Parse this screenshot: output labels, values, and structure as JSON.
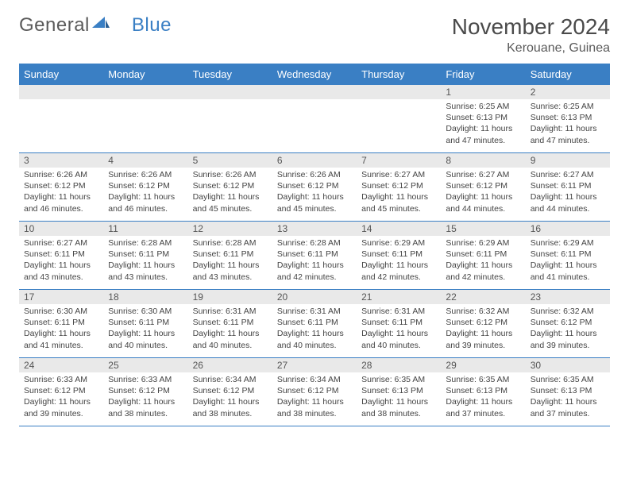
{
  "brand": {
    "part1": "General",
    "part2": "Blue"
  },
  "title": "November 2024",
  "location": "Kerouane, Guinea",
  "colors": {
    "accent": "#3a7fc4",
    "daynum_bg": "#e9e9e9",
    "text": "#444444",
    "header_text": "#4a4a4a",
    "background": "#ffffff"
  },
  "weekdays": [
    "Sunday",
    "Monday",
    "Tuesday",
    "Wednesday",
    "Thursday",
    "Friday",
    "Saturday"
  ],
  "weeks": [
    [
      {
        "empty": true
      },
      {
        "empty": true
      },
      {
        "empty": true
      },
      {
        "empty": true
      },
      {
        "empty": true
      },
      {
        "day": "1",
        "sunrise": "Sunrise: 6:25 AM",
        "sunset": "Sunset: 6:13 PM",
        "daylight": "Daylight: 11 hours and 47 minutes."
      },
      {
        "day": "2",
        "sunrise": "Sunrise: 6:25 AM",
        "sunset": "Sunset: 6:13 PM",
        "daylight": "Daylight: 11 hours and 47 minutes."
      }
    ],
    [
      {
        "day": "3",
        "sunrise": "Sunrise: 6:26 AM",
        "sunset": "Sunset: 6:12 PM",
        "daylight": "Daylight: 11 hours and 46 minutes."
      },
      {
        "day": "4",
        "sunrise": "Sunrise: 6:26 AM",
        "sunset": "Sunset: 6:12 PM",
        "daylight": "Daylight: 11 hours and 46 minutes."
      },
      {
        "day": "5",
        "sunrise": "Sunrise: 6:26 AM",
        "sunset": "Sunset: 6:12 PM",
        "daylight": "Daylight: 11 hours and 45 minutes."
      },
      {
        "day": "6",
        "sunrise": "Sunrise: 6:26 AM",
        "sunset": "Sunset: 6:12 PM",
        "daylight": "Daylight: 11 hours and 45 minutes."
      },
      {
        "day": "7",
        "sunrise": "Sunrise: 6:27 AM",
        "sunset": "Sunset: 6:12 PM",
        "daylight": "Daylight: 11 hours and 45 minutes."
      },
      {
        "day": "8",
        "sunrise": "Sunrise: 6:27 AM",
        "sunset": "Sunset: 6:12 PM",
        "daylight": "Daylight: 11 hours and 44 minutes."
      },
      {
        "day": "9",
        "sunrise": "Sunrise: 6:27 AM",
        "sunset": "Sunset: 6:11 PM",
        "daylight": "Daylight: 11 hours and 44 minutes."
      }
    ],
    [
      {
        "day": "10",
        "sunrise": "Sunrise: 6:27 AM",
        "sunset": "Sunset: 6:11 PM",
        "daylight": "Daylight: 11 hours and 43 minutes."
      },
      {
        "day": "11",
        "sunrise": "Sunrise: 6:28 AM",
        "sunset": "Sunset: 6:11 PM",
        "daylight": "Daylight: 11 hours and 43 minutes."
      },
      {
        "day": "12",
        "sunrise": "Sunrise: 6:28 AM",
        "sunset": "Sunset: 6:11 PM",
        "daylight": "Daylight: 11 hours and 43 minutes."
      },
      {
        "day": "13",
        "sunrise": "Sunrise: 6:28 AM",
        "sunset": "Sunset: 6:11 PM",
        "daylight": "Daylight: 11 hours and 42 minutes."
      },
      {
        "day": "14",
        "sunrise": "Sunrise: 6:29 AM",
        "sunset": "Sunset: 6:11 PM",
        "daylight": "Daylight: 11 hours and 42 minutes."
      },
      {
        "day": "15",
        "sunrise": "Sunrise: 6:29 AM",
        "sunset": "Sunset: 6:11 PM",
        "daylight": "Daylight: 11 hours and 42 minutes."
      },
      {
        "day": "16",
        "sunrise": "Sunrise: 6:29 AM",
        "sunset": "Sunset: 6:11 PM",
        "daylight": "Daylight: 11 hours and 41 minutes."
      }
    ],
    [
      {
        "day": "17",
        "sunrise": "Sunrise: 6:30 AM",
        "sunset": "Sunset: 6:11 PM",
        "daylight": "Daylight: 11 hours and 41 minutes."
      },
      {
        "day": "18",
        "sunrise": "Sunrise: 6:30 AM",
        "sunset": "Sunset: 6:11 PM",
        "daylight": "Daylight: 11 hours and 40 minutes."
      },
      {
        "day": "19",
        "sunrise": "Sunrise: 6:31 AM",
        "sunset": "Sunset: 6:11 PM",
        "daylight": "Daylight: 11 hours and 40 minutes."
      },
      {
        "day": "20",
        "sunrise": "Sunrise: 6:31 AM",
        "sunset": "Sunset: 6:11 PM",
        "daylight": "Daylight: 11 hours and 40 minutes."
      },
      {
        "day": "21",
        "sunrise": "Sunrise: 6:31 AM",
        "sunset": "Sunset: 6:11 PM",
        "daylight": "Daylight: 11 hours and 40 minutes."
      },
      {
        "day": "22",
        "sunrise": "Sunrise: 6:32 AM",
        "sunset": "Sunset: 6:12 PM",
        "daylight": "Daylight: 11 hours and 39 minutes."
      },
      {
        "day": "23",
        "sunrise": "Sunrise: 6:32 AM",
        "sunset": "Sunset: 6:12 PM",
        "daylight": "Daylight: 11 hours and 39 minutes."
      }
    ],
    [
      {
        "day": "24",
        "sunrise": "Sunrise: 6:33 AM",
        "sunset": "Sunset: 6:12 PM",
        "daylight": "Daylight: 11 hours and 39 minutes."
      },
      {
        "day": "25",
        "sunrise": "Sunrise: 6:33 AM",
        "sunset": "Sunset: 6:12 PM",
        "daylight": "Daylight: 11 hours and 38 minutes."
      },
      {
        "day": "26",
        "sunrise": "Sunrise: 6:34 AM",
        "sunset": "Sunset: 6:12 PM",
        "daylight": "Daylight: 11 hours and 38 minutes."
      },
      {
        "day": "27",
        "sunrise": "Sunrise: 6:34 AM",
        "sunset": "Sunset: 6:12 PM",
        "daylight": "Daylight: 11 hours and 38 minutes."
      },
      {
        "day": "28",
        "sunrise": "Sunrise: 6:35 AM",
        "sunset": "Sunset: 6:13 PM",
        "daylight": "Daylight: 11 hours and 38 minutes."
      },
      {
        "day": "29",
        "sunrise": "Sunrise: 6:35 AM",
        "sunset": "Sunset: 6:13 PM",
        "daylight": "Daylight: 11 hours and 37 minutes."
      },
      {
        "day": "30",
        "sunrise": "Sunrise: 6:35 AM",
        "sunset": "Sunset: 6:13 PM",
        "daylight": "Daylight: 11 hours and 37 minutes."
      }
    ]
  ]
}
